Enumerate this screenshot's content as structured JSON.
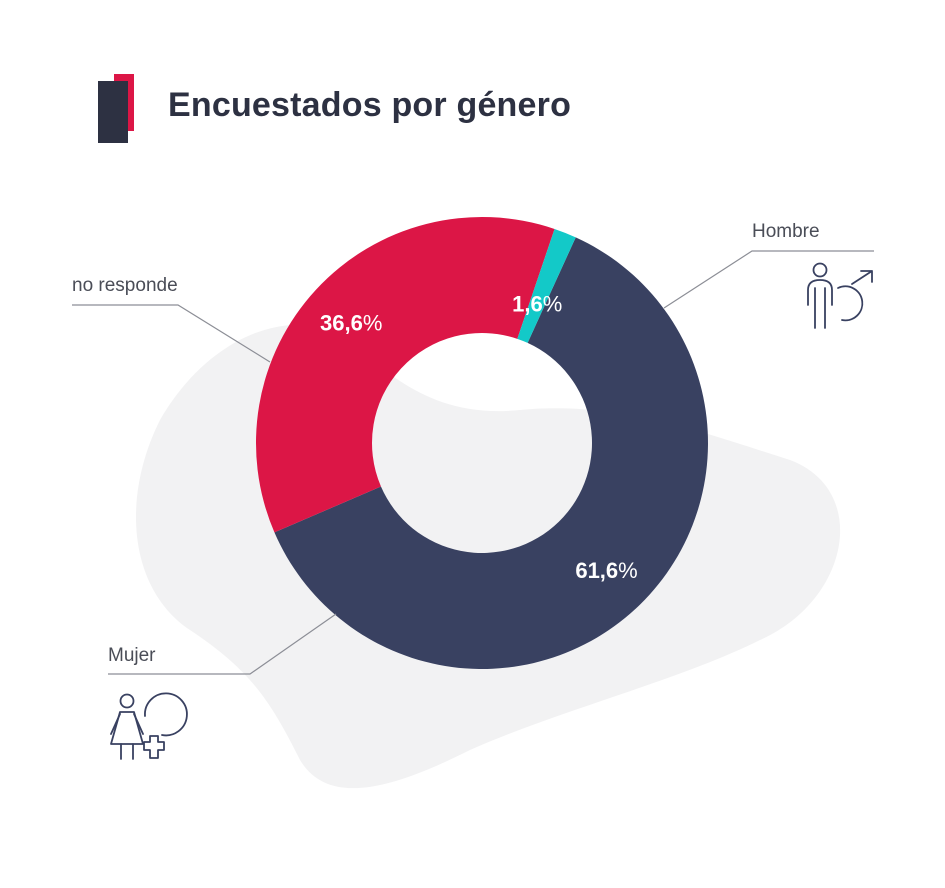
{
  "title": "Encuestados por género",
  "chart_data": {
    "type": "pie",
    "variant": "donut",
    "title": "Encuestados por género",
    "categories": [
      "Hombre",
      "Mujer",
      "no responde"
    ],
    "values": [
      61.6,
      36.6,
      1.6
    ],
    "value_labels": [
      {
        "number": "61,6",
        "unit": "%"
      },
      {
        "number": "36,6",
        "unit": "%"
      },
      {
        "number": "1,6",
        "unit": "%"
      }
    ],
    "colors": [
      "#394161",
      "#dc1646",
      "#13c9c8"
    ],
    "start_angle_deg": -65.5,
    "icons": [
      "male-figure-icon",
      "female-figure-icon"
    ]
  },
  "colors": {
    "title": "#2d3142",
    "accent": "#dc1646",
    "background_blob": "#f2f2f3"
  }
}
